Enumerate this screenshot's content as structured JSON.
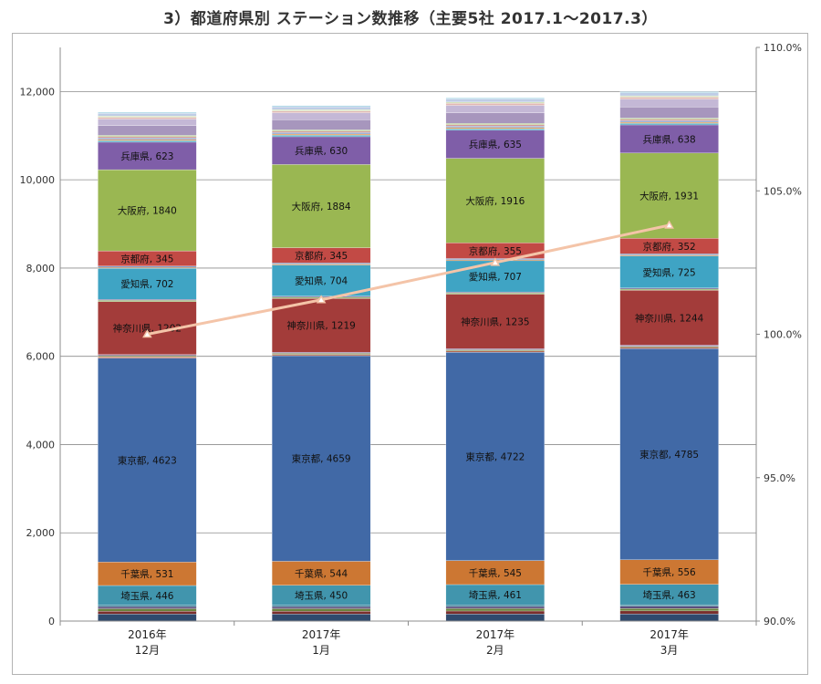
{
  "chart_data": {
    "type": "bar",
    "stacked": true,
    "title": "3）都道府県別 ステーション数推移（主要5社 2017.1～2017.3）",
    "categories": [
      [
        "2016年",
        "12月"
      ],
      [
        "2017年",
        "1月"
      ],
      [
        "2017年",
        "2月"
      ],
      [
        "2017年",
        "3月"
      ]
    ],
    "ylim": [
      0,
      13000
    ],
    "yticks": [
      "0",
      "2,000",
      "4,000",
      "6,000",
      "8,000",
      "10,000",
      "12,000"
    ],
    "y2lim": [
      90.0,
      110.0
    ],
    "y2ticks": [
      "90.0%",
      "95.0%",
      "100.0%",
      "105.0%",
      "110.0%"
    ],
    "grid": true,
    "series": [
      {
        "name": "",
        "color": "#2f4a6e",
        "values": [
          160,
          160,
          162,
          163
        ]
      },
      {
        "name": "",
        "color": "#7a2e2b",
        "values": [
          65,
          65,
          66,
          67
        ]
      },
      {
        "name": "",
        "color": "#66803a",
        "values": [
          55,
          55,
          56,
          57
        ]
      },
      {
        "name": "",
        "color": "#5b4a7a",
        "values": [
          45,
          46,
          46,
          47
        ]
      },
      {
        "name": "",
        "color": "#3a7f98",
        "values": [
          35,
          35,
          36,
          36
        ]
      },
      {
        "name": "埼玉県",
        "color": "#4195ad",
        "values": [
          446,
          450,
          461,
          463
        ]
      },
      {
        "name": "千葉県",
        "color": "#cc7733",
        "values": [
          531,
          544,
          545,
          556
        ]
      },
      {
        "name": "東京都",
        "color": "#4169a6",
        "values": [
          4623,
          4659,
          4722,
          4785
        ]
      },
      {
        "name": "",
        "color": "#b86a52",
        "values": [
          30,
          30,
          30,
          30
        ]
      },
      {
        "name": "",
        "color": "#7c8f55",
        "values": [
          25,
          25,
          25,
          25
        ]
      },
      {
        "name": "",
        "color": "#8a6f9e",
        "values": [
          25,
          25,
          25,
          25
        ]
      },
      {
        "name": "神奈川県",
        "color": "#a33c3a",
        "values": [
          1202,
          1219,
          1235,
          1244
        ]
      },
      {
        "name": "",
        "color": "#8fb85f",
        "values": [
          25,
          25,
          25,
          25
        ]
      },
      {
        "name": "",
        "color": "#7b6c9a",
        "values": [
          25,
          25,
          25,
          25
        ]
      },
      {
        "name": "愛知県",
        "color": "#3fa4c4",
        "values": [
          702,
          704,
          707,
          725
        ]
      },
      {
        "name": "",
        "color": "#c18b55",
        "values": [
          25,
          25,
          25,
          25
        ]
      },
      {
        "name": "",
        "color": "#6b8fc7",
        "values": [
          25,
          25,
          25,
          25
        ]
      },
      {
        "name": "京都府",
        "color": "#c24a45",
        "values": [
          345,
          345,
          355,
          352
        ]
      },
      {
        "name": "大阪府",
        "color": "#9ab752",
        "values": [
          1840,
          1884,
          1916,
          1931
        ]
      },
      {
        "name": "兵庫県",
        "color": "#7f5ea8",
        "values": [
          623,
          630,
          635,
          638
        ]
      },
      {
        "name": "",
        "color": "#49a7c3",
        "values": [
          35,
          35,
          35,
          35
        ]
      },
      {
        "name": "",
        "color": "#e7923f",
        "values": [
          25,
          25,
          25,
          25
        ]
      },
      {
        "name": "",
        "color": "#94a8cf",
        "values": [
          35,
          35,
          35,
          35
        ]
      },
      {
        "name": "",
        "color": "#d49a97",
        "values": [
          30,
          30,
          30,
          30
        ]
      },
      {
        "name": "",
        "color": "#b7cd8e",
        "values": [
          30,
          30,
          30,
          30
        ]
      },
      {
        "name": "",
        "color": "#a796bd",
        "values": [
          220,
          230,
          240,
          250
        ]
      },
      {
        "name": "",
        "color": "#c4b8d6",
        "values": [
          150,
          160,
          170,
          180
        ]
      },
      {
        "name": "",
        "color": "#e2b8b4",
        "values": [
          40,
          40,
          45,
          45
        ]
      },
      {
        "name": "",
        "color": "#d1e0b6",
        "values": [
          30,
          30,
          30,
          30
        ]
      },
      {
        "name": "",
        "color": "#bfcde6",
        "values": [
          60,
          65,
          70,
          70
        ]
      },
      {
        "name": "",
        "color": "#a9d6e6",
        "values": [
          25,
          25,
          25,
          25
        ]
      }
    ],
    "line": {
      "name": "",
      "color": "#f4c4a8",
      "axis": "secondary",
      "values": [
        100.0,
        101.2,
        102.5,
        103.8
      ]
    }
  }
}
